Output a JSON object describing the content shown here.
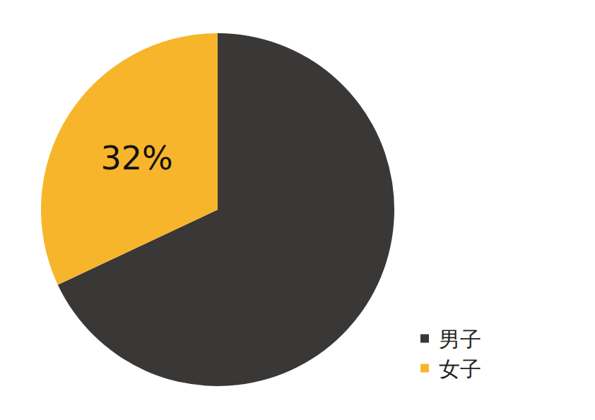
{
  "chart_data": {
    "type": "pie",
    "categories": [
      "男子",
      "女子"
    ],
    "values": [
      68,
      32
    ],
    "value_labels": [
      null,
      "32%"
    ],
    "colors": [
      "#3a3836",
      "#f7b52c"
    ],
    "data_labels": true,
    "legend": "lower right"
  }
}
